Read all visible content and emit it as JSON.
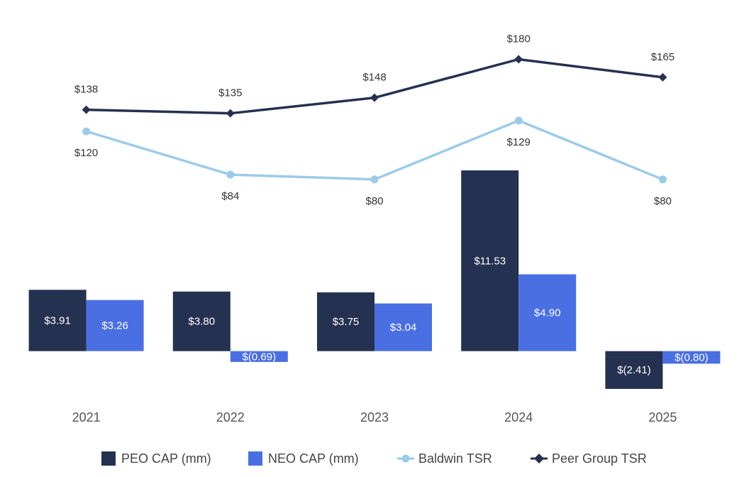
{
  "chart_data": {
    "type": "bar",
    "categories": [
      "2021",
      "2022",
      "2023",
      "2024",
      "2025"
    ],
    "ylim": [
      -4,
      20
    ],
    "y2lim": [
      -115,
      198
    ],
    "legend": "bottom",
    "series": [
      {
        "name": "PEO CAP (mm)",
        "type": "bar",
        "color": "#253150",
        "values": [
          3.91,
          3.8,
          3.75,
          11.53,
          -2.41
        ],
        "value_labels": [
          "$3.91",
          "$3.80",
          "$3.75",
          "$11.53",
          "$(2.41)"
        ]
      },
      {
        "name": "NEO CAP (mm)",
        "type": "bar",
        "color": "#4a6fe3",
        "values": [
          3.26,
          -0.69,
          3.04,
          4.9,
          -0.8
        ],
        "value_labels": [
          "$3.26",
          "$(0.69)",
          "$3.04",
          "$4.90",
          "$(0.80)"
        ]
      },
      {
        "name": "Baldwin TSR",
        "type": "line",
        "axis": "y2",
        "color": "#9ccbe8",
        "marker": "circle",
        "label_position": "below",
        "values": [
          120,
          84,
          80,
          129,
          80
        ],
        "value_labels": [
          "$120",
          "$84",
          "$80",
          "$129",
          "$80"
        ]
      },
      {
        "name": "Peer Group TSR",
        "type": "line",
        "axis": "y2",
        "color": "#253150",
        "marker": "diamond",
        "label_position": "above",
        "values": [
          138,
          135,
          148,
          180,
          165
        ],
        "value_labels": [
          "$138",
          "$135",
          "$148",
          "$180",
          "$165"
        ]
      }
    ]
  }
}
